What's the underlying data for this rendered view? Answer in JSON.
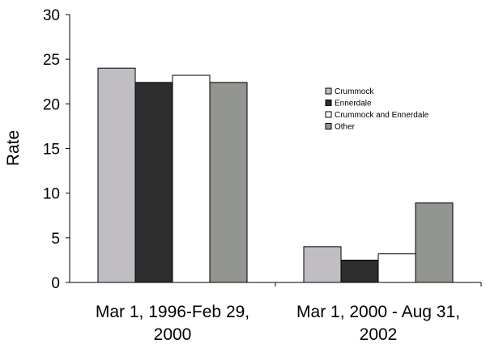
{
  "chart_data": {
    "type": "bar",
    "title": "",
    "xlabel": "",
    "ylabel": "Rate",
    "ylim": [
      0,
      30
    ],
    "yticks": [
      "0",
      "5",
      "10",
      "15",
      "20",
      "25",
      "30"
    ],
    "categories": [
      [
        "Mar 1, 1996-Feb 29,",
        "2000"
      ],
      [
        "Mar 1, 2000 - Aug 31,",
        "2002"
      ]
    ],
    "series": [
      {
        "name": "Crummock",
        "color": "#c0bec3",
        "values": [
          24.0,
          4.0
        ]
      },
      {
        "name": "Ennerdale",
        "color": "#2d2d2d",
        "values": [
          22.4,
          2.5
        ]
      },
      {
        "name": "Crummock and Ennerdale",
        "color": "#ffffff",
        "values": [
          23.2,
          3.2
        ]
      },
      {
        "name": "Other",
        "color": "#939591",
        "values": [
          22.4,
          8.9
        ]
      }
    ],
    "grid": false,
    "legend_position": "right"
  }
}
